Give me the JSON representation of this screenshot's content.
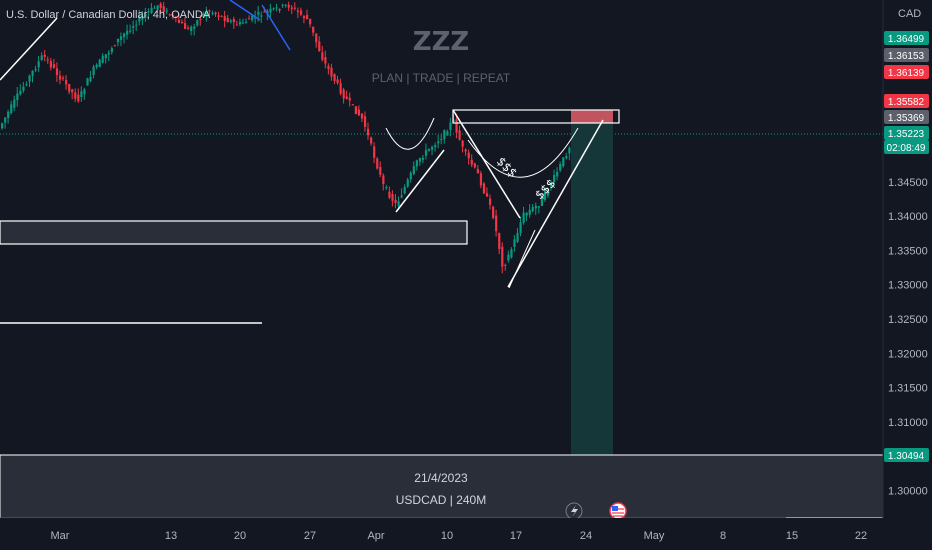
{
  "header": {
    "symbol_title": "U.S. Dollar / Canadian Dollar, 4h, OANDA",
    "currency": "CAD"
  },
  "watermark": {
    "title": "ZZZ",
    "subtitle": "PLAN |  TRADE | REPEAT"
  },
  "info_box": {
    "date": "21/4/2023",
    "instrument": "USDCAD | 240M"
  },
  "annotations": {
    "label_1": "$$$",
    "label_2": "$$$"
  },
  "price_badges": [
    {
      "text": "1.36499",
      "color": "#089981"
    },
    {
      "text": "1.36153",
      "color": "#5d606b"
    },
    {
      "text": "1.36139",
      "color": "#f23645"
    },
    {
      "text": "1.35582",
      "color": "#f23645"
    },
    {
      "text": "1.35369",
      "color": "#5d606b"
    },
    {
      "text": "1.35223",
      "color": "#089981"
    },
    {
      "text": "02:08:49",
      "color": "#089981"
    },
    {
      "text": "1.30494",
      "color": "#089981"
    }
  ],
  "icons": [
    "lightning-event-icon",
    "us-flag-icon"
  ],
  "colors": {
    "background": "#131722",
    "bull": "#089981",
    "bear": "#f23645",
    "target_zone": "#16373a",
    "stop_zone": "#e0606a"
  },
  "chart_data": {
    "type": "candlestick",
    "title": "U.S. Dollar / Canadian Dollar, 4h, OANDA",
    "symbol": "USDCAD",
    "timeframe": "4h",
    "y_axis_ticks": [
      "1.34500",
      "1.34000",
      "1.33500",
      "1.33000",
      "1.32500",
      "1.32000",
      "1.31500",
      "1.31000",
      "1.30000"
    ],
    "x_axis_ticks": [
      "Mar",
      "13",
      "20",
      "27",
      "Apr",
      "10",
      "17",
      "24",
      "May",
      "8",
      "15",
      "22"
    ],
    "ylim": [
      1.296,
      1.3715
    ],
    "current_price": 1.35223,
    "countdown": "02:08:49",
    "levels": {
      "stop_loss": 1.35582,
      "entry": 1.35369,
      "take_profit": 1.30494
    },
    "swing_points": [
      {
        "x": "Mar 1",
        "y": 1.3525
      },
      {
        "x": "Mar 8",
        "y": 1.3785
      },
      {
        "x": "Mar 15",
        "y": 1.3675
      },
      {
        "x": "Mar 22",
        "y": 1.3755
      },
      {
        "x": "Mar 28",
        "y": 1.358
      },
      {
        "x": "Apr 3",
        "y": 1.341
      },
      {
        "x": "Apr 10",
        "y": 1.356
      },
      {
        "x": "Apr 14",
        "y": 1.332
      },
      {
        "x": "Apr 21",
        "y": 1.353
      }
    ]
  }
}
